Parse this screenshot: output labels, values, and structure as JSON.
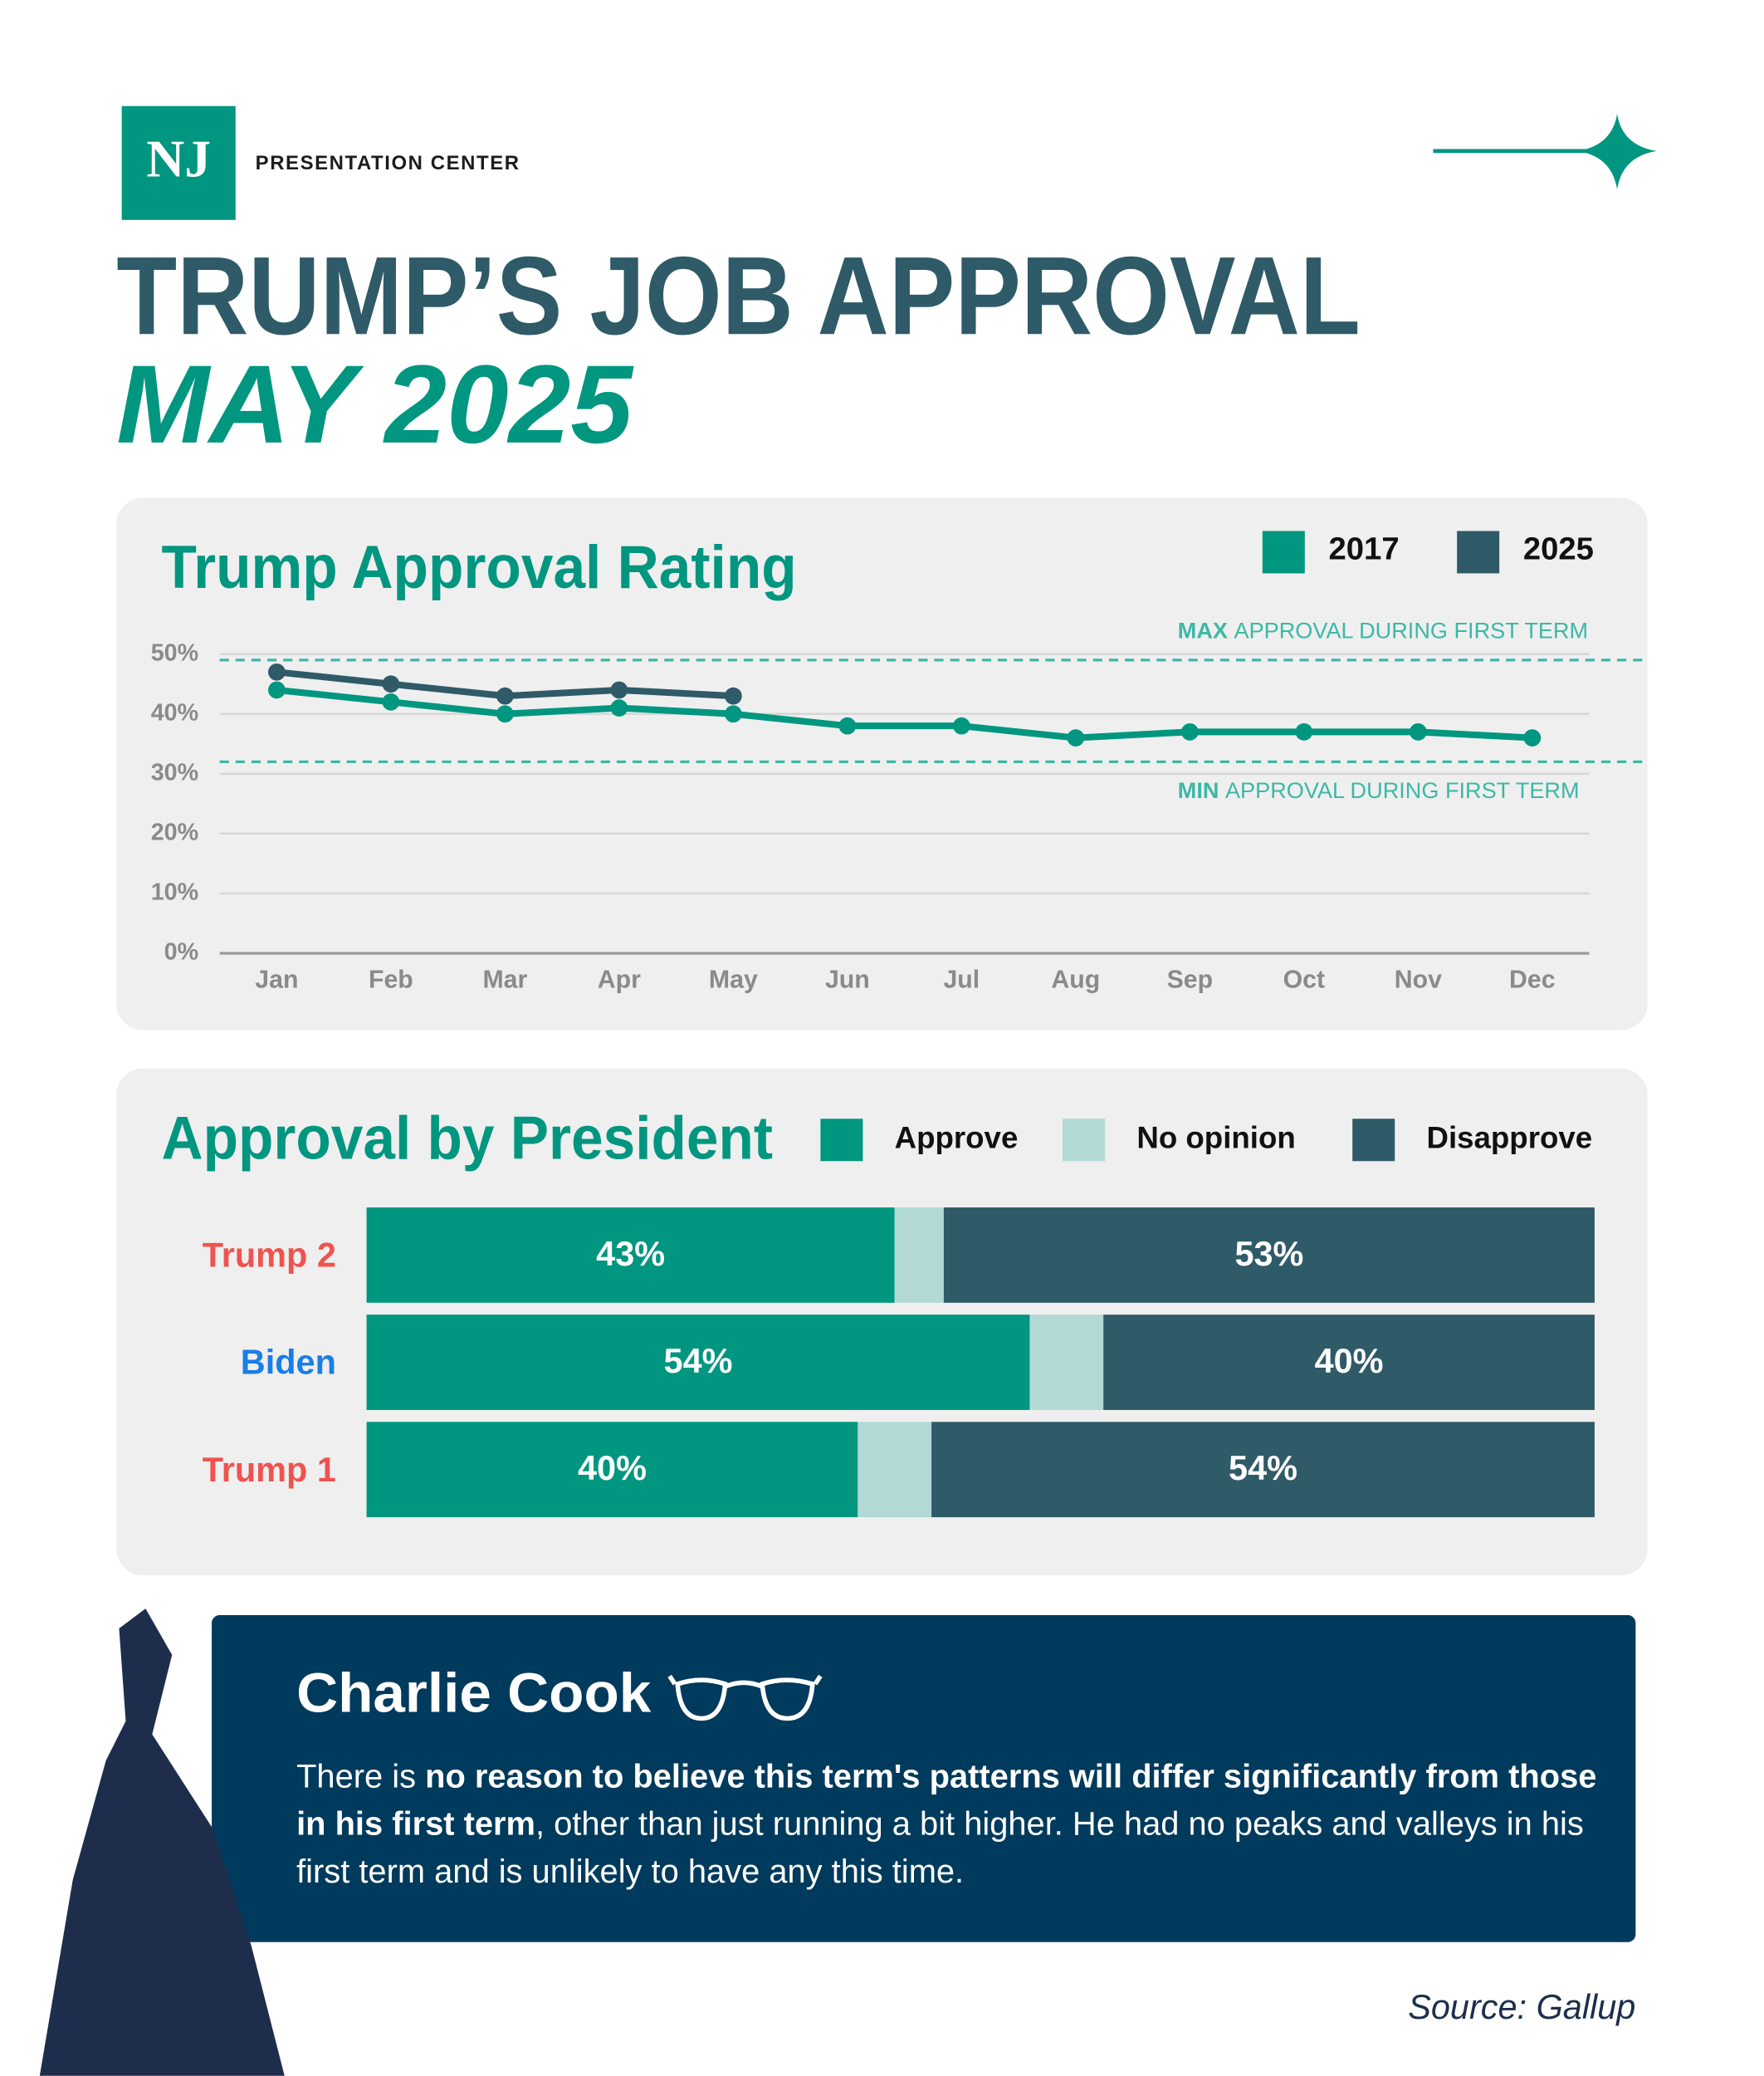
{
  "header": {
    "logo": "NJ",
    "brand": "PRESENTATION CENTER",
    "title": "TRUMP’S JOB APPROVAL",
    "subtitle": "MAY 2025"
  },
  "chart_data": [
    {
      "type": "line",
      "title": "Trump Approval Rating",
      "categories": [
        "Jan",
        "Feb",
        "Mar",
        "Apr",
        "May",
        "Jun",
        "Jul",
        "Aug",
        "Sep",
        "Oct",
        "Nov",
        "Dec"
      ],
      "series": [
        {
          "name": "2017",
          "color": "#00967f",
          "values": [
            44,
            42,
            40,
            41,
            40,
            38,
            38,
            36,
            37,
            37,
            37,
            36
          ]
        },
        {
          "name": "2025",
          "color": "#2f5a68",
          "values": [
            47,
            45,
            43,
            44,
            43,
            null,
            null,
            null,
            null,
            null,
            null,
            null
          ]
        }
      ],
      "ylim": [
        0,
        50
      ],
      "yticks": [
        {
          "value": 0,
          "label": "0%"
        },
        {
          "value": 10,
          "label": "10%"
        },
        {
          "value": 20,
          "label": "20%"
        },
        {
          "value": 30,
          "label": "30%"
        },
        {
          "value": 40,
          "label": "40%"
        },
        {
          "value": 50,
          "label": "50%"
        }
      ],
      "grid": true,
      "legend": "top-right",
      "reference_lines": [
        {
          "value": 49,
          "label_bold": "MAX",
          "label": "APPROVAL DURING FIRST TERM",
          "position": "above"
        },
        {
          "value": 32,
          "label_bold": "MIN",
          "label": "APPROVAL DURING FIRST TERM",
          "position": "below"
        }
      ]
    },
    {
      "type": "stacked-barh",
      "title": "Approval by President",
      "categories": [
        "Trump 2",
        "Biden",
        "Trump 1"
      ],
      "category_colors": [
        "#ef5350",
        "#1a7ee6",
        "#ef5350"
      ],
      "series": [
        {
          "name": "Approve",
          "color": "#00967f",
          "values": [
            43,
            54,
            40
          ],
          "value_labels": [
            "43%",
            "54%",
            "40%"
          ]
        },
        {
          "name": "No opinion",
          "color": "#b2d9d6",
          "values": [
            4,
            6,
            6
          ]
        },
        {
          "name": "Disapprove",
          "color": "#2f5a68",
          "values": [
            53,
            40,
            54
          ],
          "value_labels": [
            "53%",
            "40%",
            "54%"
          ]
        }
      ],
      "xlim": [
        0,
        100
      ],
      "legend": "top-right"
    }
  ],
  "quote": {
    "author": "Charlie Cook",
    "text": [
      {
        "text": "There is ",
        "bold": false
      },
      {
        "text": "no reason to believe this term's patterns will differ significantly from those in his first term",
        "bold": true
      },
      {
        "text": ", other than just running a bit higher. He had no peaks and valleys in his first term and is unlikely to have any this time.",
        "bold": false
      }
    ]
  },
  "source": "Source: Gallup"
}
